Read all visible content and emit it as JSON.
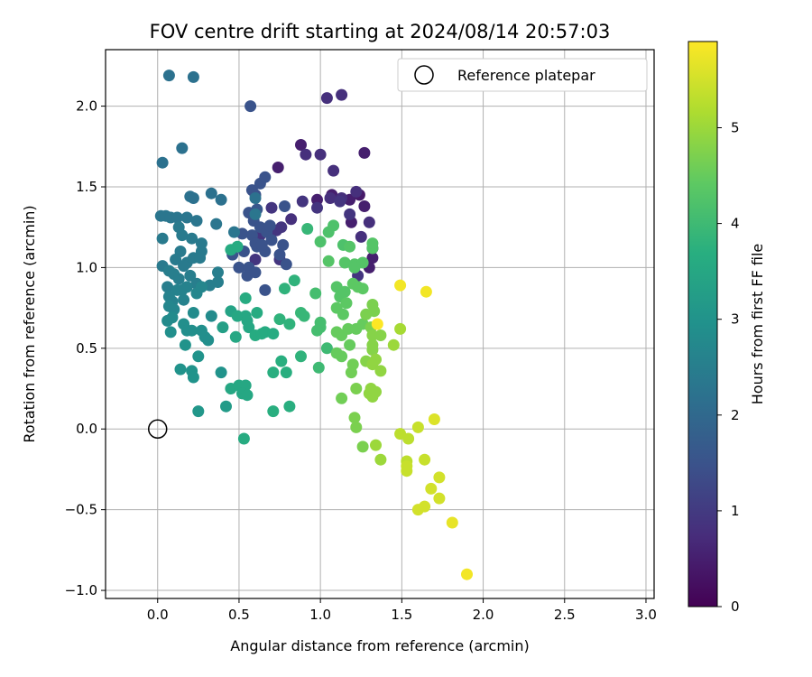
{
  "chart_data": {
    "type": "scatter",
    "title": "FOV centre drift starting at 2024/08/14 20:57:03",
    "xlabel": "Angular distance from reference (arcmin)",
    "ylabel": "Rotation from reference (arcmin)",
    "xlim": [
      -0.32,
      3.05
    ],
    "ylim": [
      -1.05,
      2.35
    ],
    "xticks": [
      0.0,
      0.5,
      1.0,
      1.5,
      2.0,
      2.5,
      3.0
    ],
    "xtick_labels": [
      "0.0",
      "0.5",
      "1.0",
      "1.5",
      "2.0",
      "2.5",
      "3.0"
    ],
    "yticks": [
      -1.0,
      -0.5,
      0.0,
      0.5,
      1.0,
      1.5,
      2.0
    ],
    "ytick_labels": [
      "−1.0",
      "−0.5",
      "0.0",
      "0.5",
      "1.0",
      "1.5",
      "2.0"
    ],
    "grid": true,
    "legend": {
      "position": "top-right",
      "entries": [
        "Reference platepar"
      ]
    },
    "reference_point": {
      "x": 0.0,
      "y": 0.0
    },
    "colorbar": {
      "label": "Hours from first FF file",
      "colormap": "viridis",
      "range": [
        0,
        5.9
      ],
      "ticks": [
        0,
        1,
        2,
        3,
        4,
        5
      ],
      "tick_labels": [
        "0",
        "1",
        "2",
        "3",
        "4",
        "5"
      ]
    },
    "points": [
      [
        0.74,
        1.62,
        0.5
      ],
      [
        0.88,
        1.76,
        0.5
      ],
      [
        0.98,
        1.42,
        0.5
      ],
      [
        1.07,
        1.45,
        0.5
      ],
      [
        1.18,
        1.42,
        0.5
      ],
      [
        1.19,
        1.28,
        0.5
      ],
      [
        1.27,
        1.71,
        0.5
      ],
      [
        1.27,
        1.38,
        0.5
      ],
      [
        1.3,
        1.0,
        0.5
      ],
      [
        1.32,
        1.06,
        0.5
      ],
      [
        1.32,
        1.12,
        0.4
      ],
      [
        1.24,
        1.45,
        0.4
      ],
      [
        1.04,
        2.05,
        0.8
      ],
      [
        1.13,
        2.07,
        0.8
      ],
      [
        0.91,
        1.7,
        0.8
      ],
      [
        1.0,
        1.7,
        0.8
      ],
      [
        1.08,
        1.6,
        0.8
      ],
      [
        1.06,
        1.43,
        0.8
      ],
      [
        0.82,
        1.3,
        0.8
      ],
      [
        1.13,
        1.43,
        0.8
      ],
      [
        1.22,
        1.47,
        0.8
      ],
      [
        1.3,
        1.28,
        0.8
      ],
      [
        1.25,
        1.19,
        0.8
      ],
      [
        0.98,
        1.37,
        0.9
      ],
      [
        0.7,
        1.37,
        0.9
      ],
      [
        0.89,
        1.41,
        0.9
      ],
      [
        0.73,
        1.23,
        0.9
      ],
      [
        0.76,
        1.25,
        0.9
      ],
      [
        0.75,
        1.05,
        0.9
      ],
      [
        0.63,
        1.2,
        0.9
      ],
      [
        1.12,
        1.41,
        0.9
      ],
      [
        1.18,
        1.33,
        0.9
      ],
      [
        1.23,
        0.95,
        0.9
      ],
      [
        0.6,
        1.05,
        0.9
      ],
      [
        0.57,
        2.0,
        1.5
      ],
      [
        0.58,
        1.48,
        1.5
      ],
      [
        0.6,
        1.45,
        1.5
      ],
      [
        0.63,
        1.52,
        1.5
      ],
      [
        0.66,
        1.56,
        1.5
      ],
      [
        0.52,
        1.21,
        1.5
      ],
      [
        0.46,
        1.08,
        1.5
      ],
      [
        0.5,
        1.0,
        1.5
      ],
      [
        0.56,
        1.0,
        1.5
      ],
      [
        0.56,
        1.34,
        1.5
      ],
      [
        0.59,
        1.29,
        1.5
      ],
      [
        0.63,
        1.25,
        1.5
      ],
      [
        0.67,
        1.22,
        1.5
      ],
      [
        0.7,
        1.17,
        1.5
      ],
      [
        0.78,
        1.38,
        1.5
      ],
      [
        0.77,
        1.14,
        1.5
      ],
      [
        0.66,
        1.1,
        1.5
      ],
      [
        0.61,
        1.13,
        1.5
      ],
      [
        0.55,
        0.95,
        1.5
      ],
      [
        0.6,
        0.97,
        1.5
      ],
      [
        0.66,
        0.86,
        1.5
      ],
      [
        0.75,
        1.08,
        1.5
      ],
      [
        0.79,
        1.02,
        1.5
      ],
      [
        0.69,
        1.26,
        1.5
      ],
      [
        0.58,
        1.2,
        1.5
      ],
      [
        0.6,
        1.15,
        1.5
      ],
      [
        0.64,
        1.14,
        1.5
      ],
      [
        0.53,
        1.1,
        1.5
      ],
      [
        0.61,
        1.36,
        1.6
      ],
      [
        0.07,
        2.19,
        2.2
      ],
      [
        0.22,
        2.18,
        2.2
      ],
      [
        0.15,
        1.74,
        2.2
      ],
      [
        0.03,
        1.65,
        2.2
      ],
      [
        0.2,
        1.44,
        2.2
      ],
      [
        0.22,
        1.43,
        2.2
      ],
      [
        0.33,
        1.46,
        2.2
      ],
      [
        0.39,
        1.42,
        2.2
      ],
      [
        0.6,
        1.43,
        2.2
      ],
      [
        0.6,
        1.33,
        2.3
      ],
      [
        0.02,
        1.32,
        2.3
      ],
      [
        0.05,
        1.32,
        2.3
      ],
      [
        0.08,
        1.31,
        2.3
      ],
      [
        0.12,
        1.31,
        2.3
      ],
      [
        0.18,
        1.31,
        2.3
      ],
      [
        0.24,
        1.29,
        2.3
      ],
      [
        0.36,
        1.27,
        2.3
      ],
      [
        0.47,
        1.22,
        2.3
      ],
      [
        0.13,
        1.25,
        2.4
      ],
      [
        0.15,
        1.2,
        2.4
      ],
      [
        0.21,
        1.18,
        2.4
      ],
      [
        0.27,
        1.15,
        2.4
      ],
      [
        0.27,
        1.1,
        2.4
      ],
      [
        0.14,
        1.1,
        2.4
      ],
      [
        0.11,
        1.05,
        2.4
      ],
      [
        0.18,
        1.03,
        2.4
      ],
      [
        0.03,
        1.01,
        2.4
      ],
      [
        0.07,
        0.98,
        2.5
      ],
      [
        0.1,
        0.96,
        2.5
      ],
      [
        0.13,
        0.93,
        2.5
      ],
      [
        0.06,
        0.88,
        2.5
      ],
      [
        0.2,
        0.95,
        2.5
      ],
      [
        0.24,
        0.9,
        2.5
      ],
      [
        0.37,
        0.97,
        2.5
      ],
      [
        0.37,
        0.91,
        2.5
      ],
      [
        0.32,
        0.89,
        2.5
      ],
      [
        0.03,
        1.18,
        2.4
      ],
      [
        0.22,
        1.06,
        2.4
      ],
      [
        0.16,
        1.01,
        2.4
      ],
      [
        0.26,
        1.06,
        2.4
      ],
      [
        0.12,
        0.86,
        2.6
      ],
      [
        0.15,
        0.86,
        2.6
      ],
      [
        0.07,
        0.82,
        2.6
      ],
      [
        0.09,
        0.79,
        2.6
      ],
      [
        0.16,
        0.8,
        2.6
      ],
      [
        0.18,
        0.88,
        2.6
      ],
      [
        0.24,
        0.84,
        2.7
      ],
      [
        0.27,
        0.88,
        2.7
      ],
      [
        0.07,
        0.76,
        2.7
      ],
      [
        0.1,
        0.74,
        2.7
      ],
      [
        0.06,
        0.67,
        2.8
      ],
      [
        0.09,
        0.69,
        2.8
      ],
      [
        0.22,
        0.72,
        2.8
      ],
      [
        0.33,
        0.7,
        2.8
      ],
      [
        0.08,
        0.6,
        2.9
      ],
      [
        0.16,
        0.65,
        2.9
      ],
      [
        0.18,
        0.61,
        2.9
      ],
      [
        0.21,
        0.61,
        2.9
      ],
      [
        0.27,
        0.61,
        2.9
      ],
      [
        0.29,
        0.57,
        2.9
      ],
      [
        0.31,
        0.55,
        2.9
      ],
      [
        0.17,
        0.52,
        3.0
      ],
      [
        0.25,
        0.45,
        3.0
      ],
      [
        0.14,
        0.37,
        3.0
      ],
      [
        0.21,
        0.36,
        3.0
      ],
      [
        0.22,
        0.32,
        3.0
      ],
      [
        0.39,
        0.35,
        3.0
      ],
      [
        0.25,
        0.11,
        3.1
      ],
      [
        0.42,
        0.14,
        3.2
      ],
      [
        0.4,
        0.63,
        3.3
      ],
      [
        0.45,
        0.73,
        3.4
      ],
      [
        0.49,
        0.7,
        3.5
      ],
      [
        0.54,
        0.7,
        3.5
      ],
      [
        0.55,
        0.67,
        3.5
      ],
      [
        0.48,
        0.57,
        3.5
      ],
      [
        0.56,
        0.63,
        3.5
      ],
      [
        0.45,
        0.25,
        3.5
      ],
      [
        0.5,
        0.27,
        3.5
      ],
      [
        0.54,
        0.27,
        3.5
      ],
      [
        0.52,
        0.22,
        3.5
      ],
      [
        0.55,
        0.21,
        3.5
      ],
      [
        0.53,
        -0.06,
        3.6
      ],
      [
        0.45,
        1.11,
        3.6
      ],
      [
        0.49,
        1.13,
        3.6
      ],
      [
        0.54,
        0.81,
        3.6
      ],
      [
        0.61,
        0.72,
        3.6
      ],
      [
        0.6,
        0.58,
        3.6
      ],
      [
        0.64,
        0.59,
        3.6
      ],
      [
        0.66,
        0.6,
        3.6
      ],
      [
        0.71,
        0.59,
        3.6
      ],
      [
        0.71,
        0.35,
        3.7
      ],
      [
        0.76,
        0.42,
        3.7
      ],
      [
        0.71,
        0.11,
        3.7
      ],
      [
        0.81,
        0.14,
        3.7
      ],
      [
        0.79,
        0.35,
        3.7
      ],
      [
        0.75,
        0.68,
        3.8
      ],
      [
        0.81,
        0.65,
        3.8
      ],
      [
        0.78,
        0.87,
        3.8
      ],
      [
        0.84,
        0.92,
        3.8
      ],
      [
        0.88,
        0.45,
        3.8
      ],
      [
        0.88,
        0.72,
        3.9
      ],
      [
        0.9,
        0.7,
        3.9
      ],
      [
        0.92,
        1.24,
        3.9
      ],
      [
        0.99,
        0.38,
        4.0
      ],
      [
        1.04,
        0.5,
        4.0
      ],
      [
        0.97,
        0.84,
        4.1
      ],
      [
        1.0,
        0.63,
        4.1
      ],
      [
        1.0,
        0.66,
        4.1
      ],
      [
        0.98,
        0.61,
        4.1
      ],
      [
        1.0,
        1.16,
        4.2
      ],
      [
        1.05,
        1.22,
        4.2
      ],
      [
        1.08,
        1.26,
        4.2
      ],
      [
        1.14,
        1.14,
        4.2
      ],
      [
        1.18,
        1.13,
        4.3
      ],
      [
        1.05,
        1.04,
        4.3
      ],
      [
        1.15,
        1.03,
        4.3
      ],
      [
        1.21,
        1.02,
        4.3
      ],
      [
        1.26,
        1.03,
        4.3
      ],
      [
        1.1,
        0.88,
        4.3
      ],
      [
        1.12,
        0.82,
        4.3
      ],
      [
        1.15,
        0.85,
        4.3
      ],
      [
        1.2,
        0.9,
        4.4
      ],
      [
        1.23,
        0.88,
        4.4
      ],
      [
        1.26,
        0.87,
        4.4
      ],
      [
        1.1,
        0.75,
        4.4
      ],
      [
        1.14,
        0.71,
        4.4
      ],
      [
        1.16,
        0.78,
        4.4
      ],
      [
        1.1,
        0.6,
        4.5
      ],
      [
        1.13,
        0.58,
        4.5
      ],
      [
        1.17,
        0.62,
        4.5
      ],
      [
        1.22,
        0.62,
        4.5
      ],
      [
        1.26,
        0.65,
        4.5
      ],
      [
        1.1,
        0.47,
        4.5
      ],
      [
        1.13,
        0.45,
        4.5
      ],
      [
        1.18,
        0.52,
        4.5
      ],
      [
        1.2,
        0.4,
        4.6
      ],
      [
        1.13,
        0.19,
        4.6
      ],
      [
        1.19,
        0.35,
        4.6
      ],
      [
        1.22,
        0.25,
        4.7
      ],
      [
        1.21,
        0.07,
        4.7
      ],
      [
        1.22,
        0.01,
        4.7
      ],
      [
        1.26,
        -0.11,
        4.7
      ],
      [
        1.32,
        0.77,
        4.7
      ],
      [
        1.33,
        0.73,
        4.7
      ],
      [
        1.28,
        0.71,
        4.7
      ],
      [
        1.31,
        0.63,
        4.7
      ],
      [
        1.32,
        0.58,
        4.8
      ],
      [
        1.37,
        0.58,
        4.8
      ],
      [
        1.32,
        0.52,
        4.8
      ],
      [
        1.32,
        0.49,
        4.8
      ],
      [
        1.28,
        0.42,
        4.8
      ],
      [
        1.34,
        0.43,
        4.9
      ],
      [
        1.32,
        0.4,
        4.9
      ],
      [
        1.37,
        0.36,
        4.9
      ],
      [
        1.3,
        0.22,
        4.9
      ],
      [
        1.32,
        0.2,
        4.9
      ],
      [
        1.31,
        0.25,
        4.9
      ],
      [
        1.34,
        0.23,
        4.9
      ],
      [
        1.32,
        1.12,
        4.3
      ],
      [
        1.32,
        1.15,
        4.3
      ],
      [
        1.21,
        1.0,
        4.3
      ],
      [
        1.37,
        -0.19,
        5.0
      ],
      [
        1.34,
        -0.1,
        5.0
      ],
      [
        1.45,
        0.52,
        5.0
      ],
      [
        1.49,
        0.62,
        5.1
      ],
      [
        1.49,
        -0.03,
        5.3
      ],
      [
        1.54,
        -0.06,
        5.3
      ],
      [
        1.53,
        -0.2,
        5.3
      ],
      [
        1.53,
        -0.26,
        5.4
      ],
      [
        1.53,
        -0.23,
        5.4
      ],
      [
        1.6,
        0.01,
        5.4
      ],
      [
        1.64,
        -0.19,
        5.4
      ],
      [
        1.64,
        -0.48,
        5.5
      ],
      [
        1.6,
        -0.5,
        5.5
      ],
      [
        1.68,
        -0.37,
        5.5
      ],
      [
        1.73,
        -0.3,
        5.5
      ],
      [
        1.73,
        -0.43,
        5.5
      ],
      [
        1.7,
        0.06,
        5.6
      ],
      [
        1.81,
        -0.58,
        5.7
      ],
      [
        1.9,
        -0.9,
        5.8
      ],
      [
        1.49,
        0.89,
        5.8
      ],
      [
        1.65,
        0.85,
        5.8
      ],
      [
        1.35,
        0.65,
        5.9
      ]
    ]
  }
}
